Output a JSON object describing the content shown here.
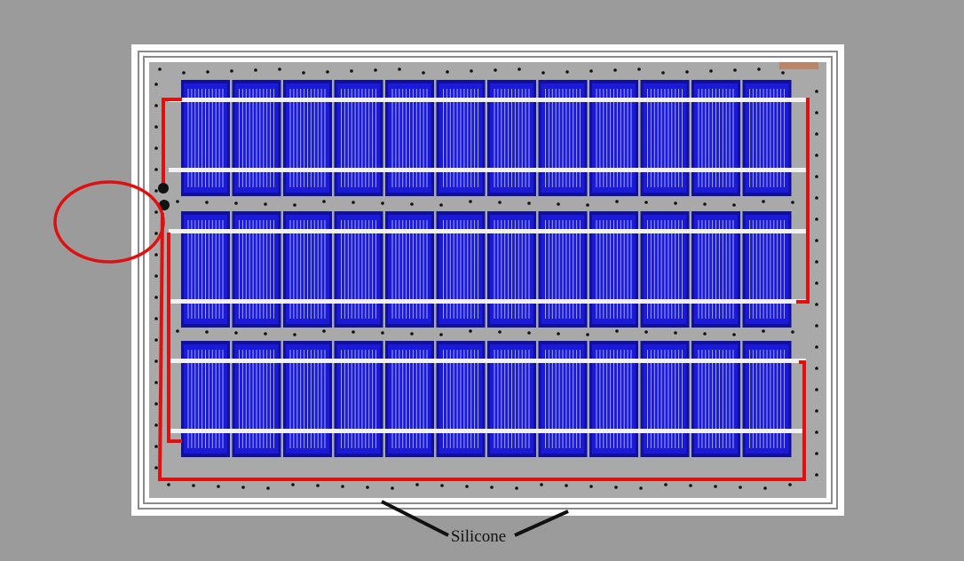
{
  "labels": {
    "silicone": "Silicone"
  },
  "panel": {
    "rows": 3,
    "cells_per_row": 12,
    "fingers_per_cell": 11
  },
  "colors": {
    "background": "#9b9b9b",
    "frame": "#ffffff",
    "backsheet": "#a9a9a9",
    "cell": "#1a1ad8",
    "cell_dark": "#10109c",
    "finger": "#c8ccf2",
    "busbar": "#f2f2f2",
    "ribbon": "#e01010",
    "silicone_dot": "#111111",
    "highlight_circle": "#e01010",
    "leader_line": "#111111"
  },
  "icons": [
    "highlight-circle",
    "junction-dot",
    "silicone-leader"
  ]
}
